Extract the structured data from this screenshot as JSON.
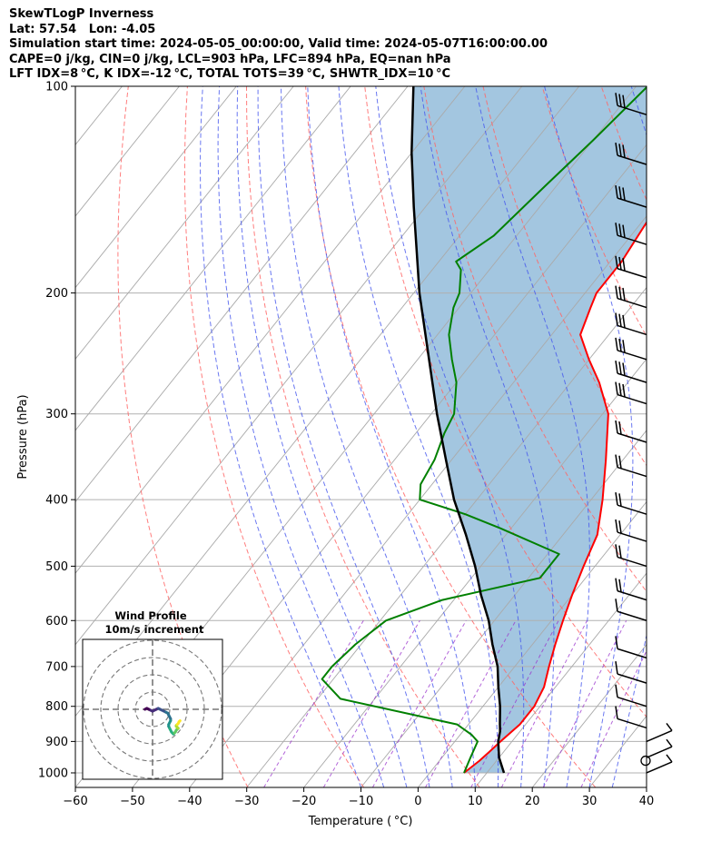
{
  "header": {
    "line1": "SkewTLogP Inverness",
    "line2": "Lat: 57.54   Lon: -4.05",
    "line3": "Simulation start time: 2024-05-05_00:00:00, Valid time: 2024-05-07T16:00:00.00",
    "line4": "CAPE=0 j/kg, CIN=0 j/kg, LCL=903 hPa, LFC=894 hPa, EQ=nan hPa",
    "line5": "LFT IDX=8 °C, K IDX=-12 °C, TOTAL TOTS=39 °C, SHWTR_IDX=10 °C"
  },
  "colors": {
    "temperature": "#ff0000",
    "dewpoint": "#008000",
    "parcel": "#000000",
    "shade": "#a3c6e0",
    "dry_adiabat": "#ff6666",
    "moist_adiabat": "#4455ee",
    "mixing_ratio": "#9933cc",
    "isotherm": "#aaaaaa"
  },
  "chart_data": [
    {
      "type": "line",
      "subtype": "skew-T log-P",
      "xlabel": "Temperature ( °C)",
      "ylabel": "Pressure (hPa)",
      "xlim": [
        -60,
        40
      ],
      "ylim": [
        1050,
        100
      ],
      "yscale": "log",
      "xticks": [
        "−60",
        "−50",
        "−40",
        "−30",
        "−20",
        "−10",
        "0",
        "10",
        "20",
        "30",
        "40"
      ],
      "yticks": [
        "100",
        "200",
        "300",
        "400",
        "500",
        "600",
        "700",
        "800",
        "900",
        "1000"
      ],
      "grid": true,
      "series": [
        {
          "id": "temperature",
          "points": [
            [
              1000,
              6
            ],
            [
              960,
              7
            ],
            [
              930,
              7.5
            ],
            [
              900,
              8
            ],
            [
              850,
              9
            ],
            [
              800,
              9
            ],
            [
              750,
              8
            ],
            [
              700,
              6
            ],
            [
              650,
              4
            ],
            [
              600,
              2
            ],
            [
              550,
              0
            ],
            [
              500,
              -2
            ],
            [
              450,
              -4
            ],
            [
              400,
              -8
            ],
            [
              350,
              -13
            ],
            [
              300,
              -19
            ],
            [
              270,
              -25
            ],
            [
              250,
              -30
            ],
            [
              230,
              -35
            ],
            [
              210,
              -37
            ],
            [
              200,
              -38
            ],
            [
              180,
              -38
            ],
            [
              160,
              -39
            ],
            [
              140,
              -40
            ],
            [
              125,
              -42
            ],
            [
              110,
              -46
            ],
            [
              100,
              -48
            ]
          ]
        },
        {
          "id": "dewpoint",
          "points": [
            [
              1000,
              6
            ],
            [
              950,
              5
            ],
            [
              900,
              4
            ],
            [
              880,
              2
            ],
            [
              850,
              -2
            ],
            [
              780,
              -26
            ],
            [
              730,
              -32
            ],
            [
              700,
              -32
            ],
            [
              650,
              -31
            ],
            [
              600,
              -29
            ],
            [
              560,
              -22
            ],
            [
              520,
              -8
            ],
            [
              480,
              -8
            ],
            [
              440,
              -22
            ],
            [
              420,
              -30
            ],
            [
              400,
              -40
            ],
            [
              380,
              -42
            ],
            [
              350,
              -43
            ],
            [
              320,
              -45
            ],
            [
              300,
              -46
            ],
            [
              270,
              -50
            ],
            [
              250,
              -54
            ],
            [
              230,
              -58
            ],
            [
              210,
              -61
            ],
            [
              200,
              -62
            ],
            [
              185,
              -65
            ],
            [
              180,
              -67
            ],
            [
              165,
              -64
            ],
            [
              140,
              -62
            ],
            [
              120,
              -60
            ],
            [
              100,
              -58
            ]
          ]
        },
        {
          "id": "parcel",
          "points": [
            [
              1000,
              13
            ],
            [
              950,
              10
            ],
            [
              900,
              7.6
            ],
            [
              870,
              6.5
            ],
            [
              850,
              5.5
            ],
            [
              800,
              3
            ],
            [
              750,
              0
            ],
            [
              700,
              -3
            ],
            [
              650,
              -7
            ],
            [
              600,
              -11
            ],
            [
              550,
              -16
            ],
            [
              500,
              -21
            ],
            [
              450,
              -27
            ],
            [
              400,
              -34
            ],
            [
              350,
              -41
            ],
            [
              300,
              -49
            ],
            [
              250,
              -58
            ],
            [
              200,
              -69
            ],
            [
              150,
              -82
            ],
            [
              125,
              -90
            ],
            [
              100,
              -99
            ]
          ]
        }
      ],
      "wind_barbs_levels": [
        110,
        130,
        150,
        170,
        190,
        210,
        230,
        250,
        270,
        290,
        330,
        370,
        420,
        460,
        500,
        560,
        600,
        680,
        740,
        800,
        860,
        900,
        950,
        1000
      ]
    },
    {
      "type": "line",
      "subtype": "hodograph",
      "title": "Wind Profile",
      "subtitle": "10m/s increment",
      "rings": [
        10,
        20,
        30,
        40
      ],
      "u": [
        -8,
        -6,
        -4,
        -2,
        0,
        2,
        4,
        6,
        8,
        10,
        12,
        14,
        16,
        17,
        18,
        19,
        19,
        18,
        17,
        17,
        18,
        19,
        20,
        21,
        22,
        23,
        24,
        25,
        26,
        27,
        26,
        25,
        25,
        26,
        27,
        28,
        29
      ],
      "v": [
        0,
        1,
        0,
        -1,
        -2,
        -1,
        0,
        1,
        0,
        -1,
        -2,
        -3,
        -4,
        -6,
        -8,
        -10,
        -12,
        -14,
        -16,
        -18,
        -20,
        -22,
        -24,
        -25,
        -26,
        -25,
        -24,
        -22,
        -21,
        -20,
        -19,
        -18,
        -17,
        -16,
        -15,
        -13,
        -12
      ]
    }
  ]
}
